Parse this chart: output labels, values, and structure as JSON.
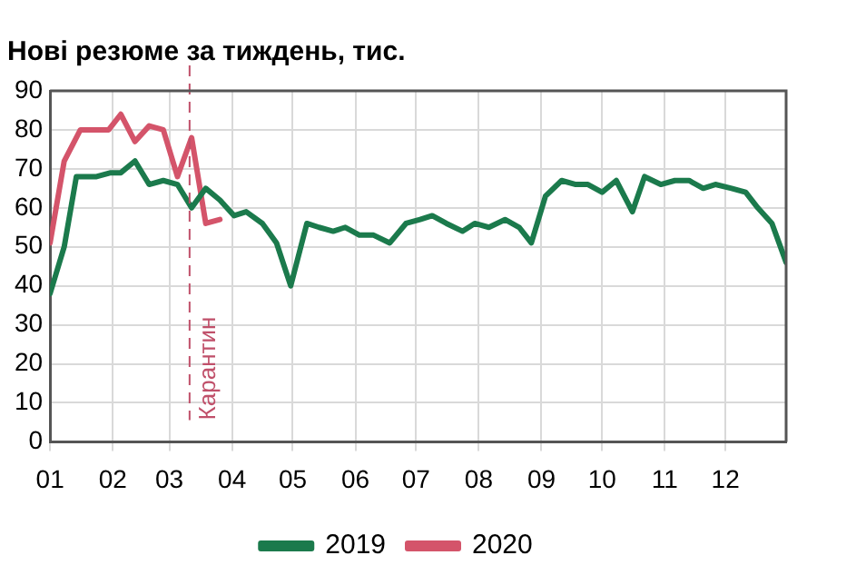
{
  "chart_data": {
    "type": "line",
    "title": "Нові резюме за тиждень, тис.",
    "xlim": [
      "--01-01",
      "--12-31"
    ],
    "xticks": [
      {
        "value": "--01-01",
        "label": "01"
      },
      {
        "value": "--02-01",
        "label": "02"
      },
      {
        "value": "--03-01",
        "label": "03"
      },
      {
        "value": "--04-01",
        "label": "04"
      },
      {
        "value": "--05-01",
        "label": "05"
      },
      {
        "value": "--06-01",
        "label": "06"
      },
      {
        "value": "--07-01",
        "label": "07"
      },
      {
        "value": "--08-01",
        "label": "08"
      },
      {
        "value": "--09-01",
        "label": "09"
      },
      {
        "value": "--10-01",
        "label": "10"
      },
      {
        "value": "--11-01",
        "label": "11"
      },
      {
        "value": "--12-01",
        "label": "12"
      }
    ],
    "ylim": [
      0,
      90
    ],
    "yticks": [
      0,
      10,
      20,
      30,
      40,
      50,
      60,
      70,
      80,
      90
    ],
    "series": [
      {
        "name": "2019",
        "color": "#1b7a4c",
        "x": [
          "--01-01",
          "--01-08",
          "--01-14",
          "--01-24",
          "--01-31",
          "--02-05",
          "--02-12",
          "--02-19",
          "--02-26",
          "--03-05",
          "--03-12",
          "--03-19",
          "--03-26",
          "--04-02",
          "--04-08",
          "--04-16",
          "--04-23",
          "--04-30",
          "--05-08",
          "--05-14",
          "--05-21",
          "--05-27",
          "--06-03",
          "--06-10",
          "--06-18",
          "--06-26",
          "--07-03",
          "--07-09",
          "--07-16",
          "--07-24",
          "--07-30",
          "--08-06",
          "--08-14",
          "--08-21",
          "--08-27",
          "--09-03",
          "--09-11",
          "--09-18",
          "--09-24",
          "--10-01",
          "--10-08",
          "--10-16",
          "--10-22",
          "--10-30",
          "--11-06",
          "--11-13",
          "--11-20",
          "--11-26",
          "--12-04",
          "--12-11",
          "--12-17",
          "--12-24",
          "--12-31"
        ],
        "values": [
          38,
          50,
          68,
          68,
          69,
          69,
          72,
          66,
          67,
          66,
          60,
          65,
          62,
          58,
          59,
          56,
          51,
          40,
          56,
          55,
          54,
          55,
          53,
          53,
          51,
          56,
          57,
          58,
          56,
          54,
          56,
          55,
          57,
          55,
          51,
          63,
          67,
          66,
          66,
          64,
          67,
          59,
          68,
          66,
          67,
          67,
          65,
          66,
          65,
          64,
          60,
          56,
          46
        ]
      },
      {
        "name": "2020",
        "color": "#d4546a",
        "x": [
          "--01-01",
          "--01-08",
          "--01-16",
          "--01-22",
          "--01-30",
          "--02-05",
          "--02-12",
          "--02-19",
          "--02-26",
          "--03-05",
          "--03-12",
          "--03-19",
          "--03-26"
        ],
        "values": [
          51,
          72,
          80,
          80,
          80,
          84,
          77,
          81,
          80,
          68,
          78,
          56,
          57
        ]
      }
    ],
    "ref_lines": [
      {
        "axis": "x",
        "value": "--03-11",
        "label": "Карантин",
        "color": "#c0506a",
        "line_style": "dashed"
      }
    ],
    "grid": true,
    "legend": "bottom",
    "line_style": "solid",
    "marker": "none"
  }
}
